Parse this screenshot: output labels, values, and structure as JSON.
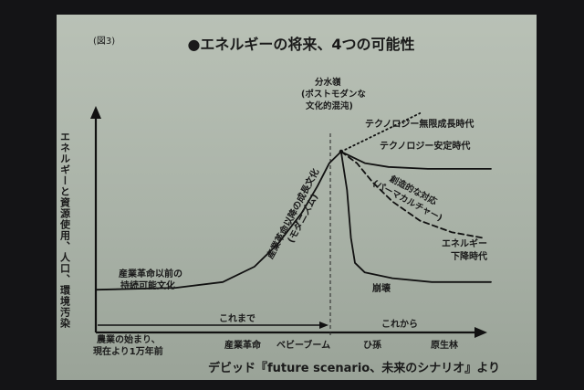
{
  "slide": {
    "figure_label": "(図3)",
    "caption": "デビッド『future scenario、未来のシナリオ』より"
  },
  "chart_data": {
    "type": "line",
    "title": "●エネルギーの将来、4つの可能性",
    "ylabel": "エネルギーと資源使用、人口、環境汚染",
    "x_ticks": [
      "産業革命",
      "ベビーブーム",
      "ひ孫",
      "原生林"
    ],
    "x_origin_label": "農業の始まり、現在より1万年前",
    "period_labels": {
      "past": "これまで",
      "future": "これから"
    },
    "annotations": {
      "pre_industrial": "産業革命以前の持続可能文化",
      "industrial_growth": "産業革命以降の成長文化(モダニズム)",
      "watershed": "分水嶺(ポストモダンな文化的混沌)",
      "creative_response": "創造的な対応(パーマカルチャー)"
    },
    "series": [
      {
        "name": "テクノロジー無限成長時代",
        "style": "dotted",
        "points": [
          [
            0.62,
            0.8
          ],
          [
            0.68,
            0.86
          ],
          [
            0.75,
            0.93
          ],
          [
            0.82,
            1.0
          ]
        ]
      },
      {
        "name": "テクノロジー安定時代",
        "style": "solid",
        "points": [
          [
            0.62,
            0.8
          ],
          [
            0.68,
            0.74
          ],
          [
            0.74,
            0.72
          ],
          [
            0.84,
            0.71
          ],
          [
            1.0,
            0.71
          ]
        ]
      },
      {
        "name": "エネルギー下降時代",
        "style": "dashed",
        "points": [
          [
            0.62,
            0.8
          ],
          [
            0.66,
            0.74
          ],
          [
            0.7,
            0.64
          ],
          [
            0.75,
            0.54
          ],
          [
            0.82,
            0.44
          ],
          [
            0.9,
            0.38
          ],
          [
            0.98,
            0.35
          ]
        ]
      },
      {
        "name": "崩壊",
        "style": "solid",
        "points": [
          [
            0.62,
            0.8
          ],
          [
            0.635,
            0.6
          ],
          [
            0.645,
            0.35
          ],
          [
            0.655,
            0.22
          ],
          [
            0.68,
            0.17
          ],
          [
            0.75,
            0.14
          ],
          [
            0.85,
            0.12
          ],
          [
            1.0,
            0.12
          ]
        ]
      }
    ],
    "history": {
      "style": "solid",
      "points": [
        [
          0.0,
          0.08
        ],
        [
          0.2,
          0.09
        ],
        [
          0.32,
          0.12
        ],
        [
          0.4,
          0.2
        ],
        [
          0.46,
          0.32
        ],
        [
          0.52,
          0.48
        ],
        [
          0.56,
          0.62
        ],
        [
          0.59,
          0.74
        ],
        [
          0.62,
          0.8
        ]
      ]
    },
    "colors": {
      "line": "#111111",
      "background": "#b3bbb0",
      "frame": "#141416"
    }
  }
}
